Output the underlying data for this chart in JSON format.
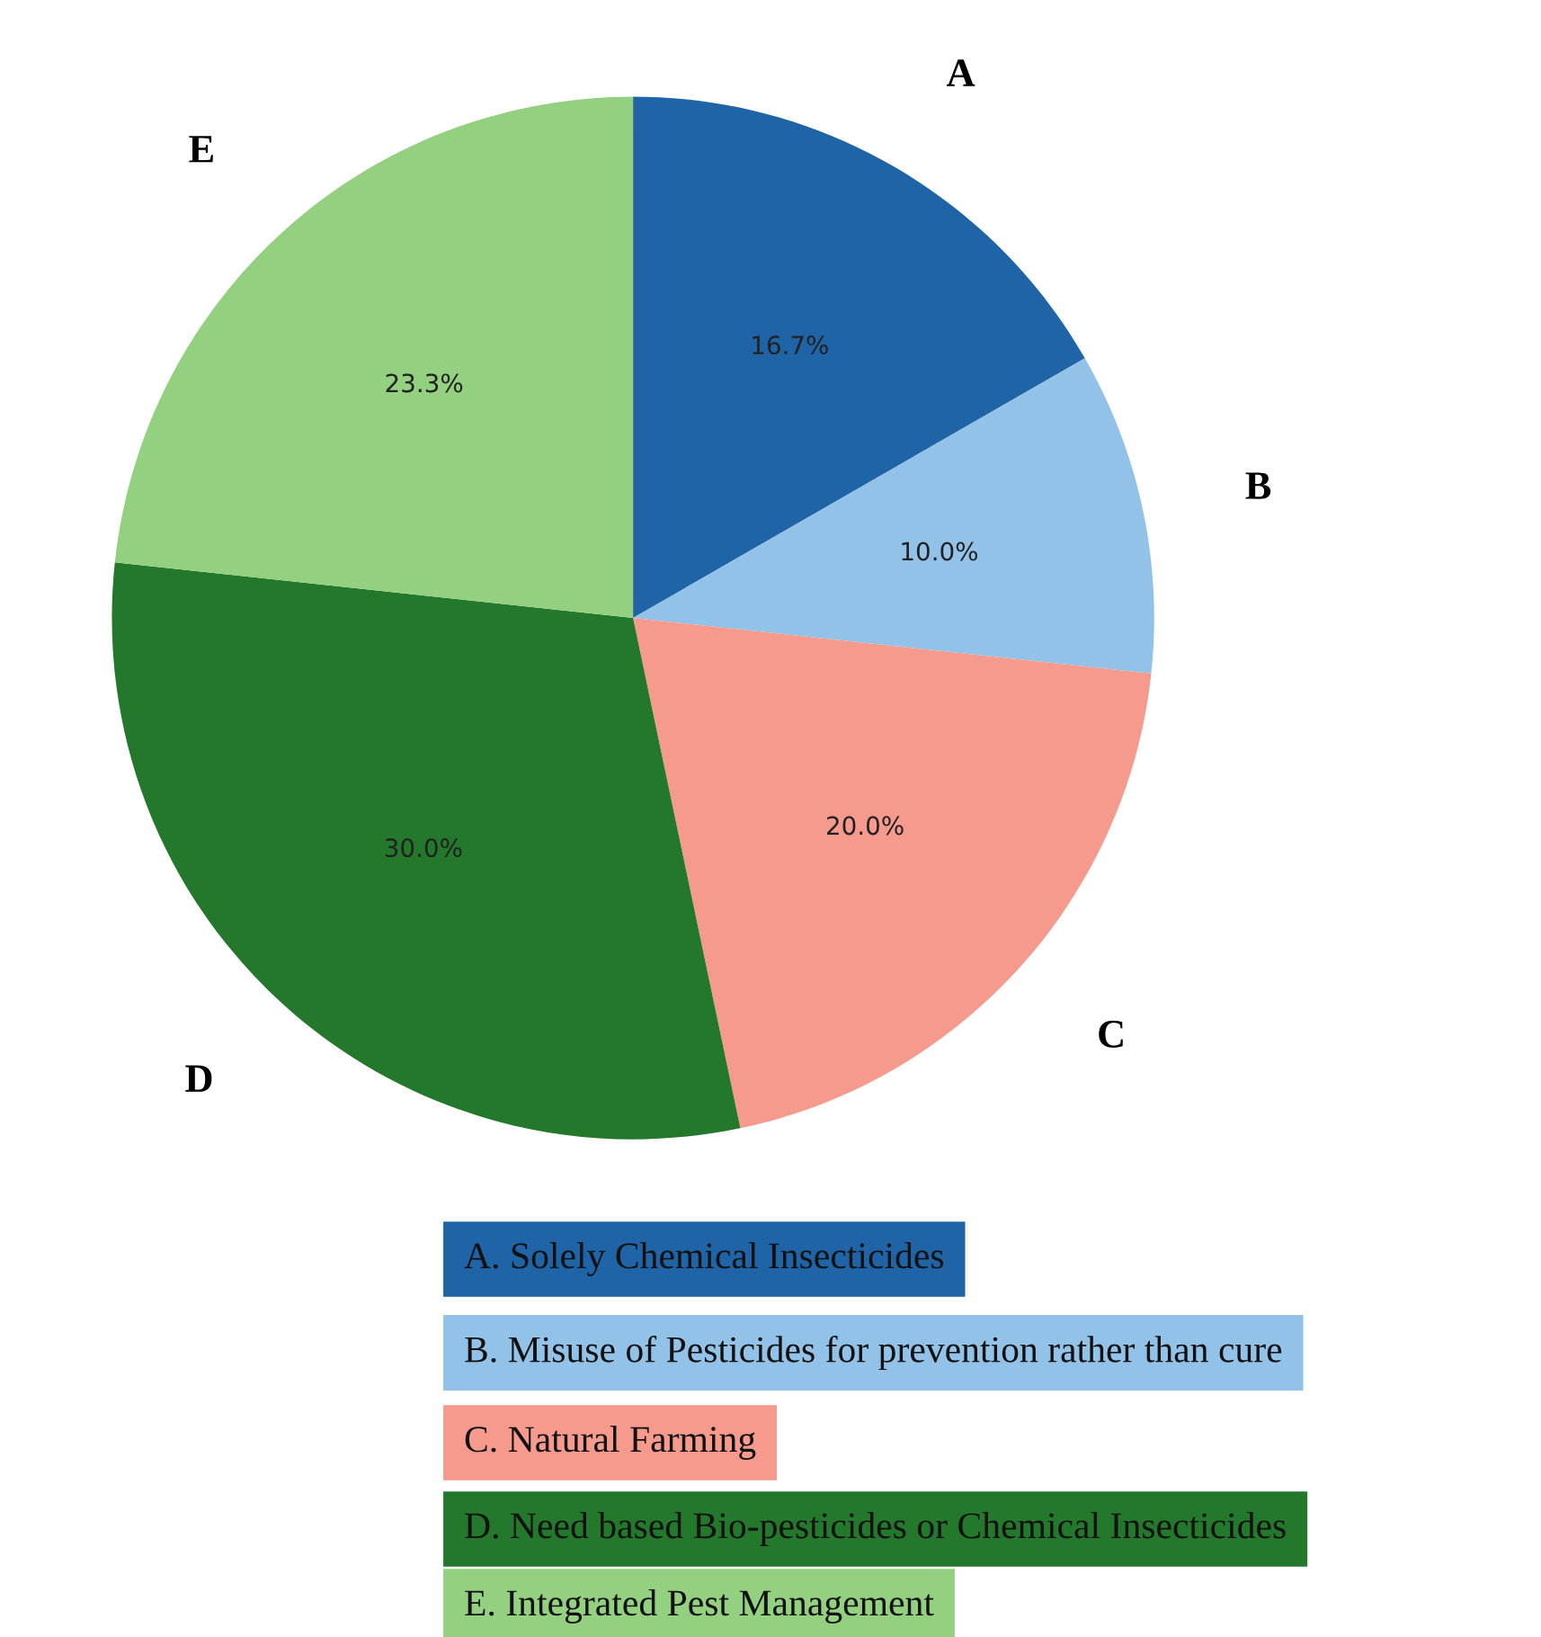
{
  "chart_data": {
    "type": "pie",
    "categories": [
      "A",
      "B",
      "C",
      "D",
      "E"
    ],
    "values": [
      16.7,
      10.0,
      20.0,
      30.0,
      23.3
    ],
    "value_labels": [
      "16.7%",
      "10.0%",
      "20.0%",
      "30.0%",
      "23.3%"
    ],
    "colors": [
      "#1f64a6",
      "#93c2e8",
      "#f59a8c",
      "#23782b",
      "#93d07f"
    ],
    "annotations": [
      "A. Solely Chemical Insecticides",
      "B. Misuse of Pesticides for prevention rather than cure",
      "C. Natural Farming",
      "D. Need based Bio-pesticides or Chemical Insecticides",
      "E. Integrated Pest Management"
    ]
  }
}
